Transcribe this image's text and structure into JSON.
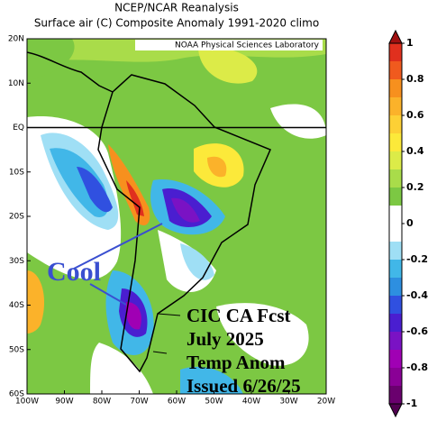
{
  "header": {
    "title": "NCEP/NCAR Reanalysis",
    "subtitle": "Surface air (C) Composite Anomaly 1991-2020 climo"
  },
  "map": {
    "credit": "NOAA Physical Sciences Laboratory",
    "xlim": [
      -100,
      -20
    ],
    "ylim": [
      -60,
      20
    ],
    "xticks": [
      {
        "value": -100,
        "label": "100W"
      },
      {
        "value": -90,
        "label": "90W"
      },
      {
        "value": -80,
        "label": "80W"
      },
      {
        "value": -70,
        "label": "70W"
      },
      {
        "value": -60,
        "label": "60W"
      },
      {
        "value": -50,
        "label": "50W"
      },
      {
        "value": -40,
        "label": "40W"
      },
      {
        "value": -30,
        "label": "30W"
      },
      {
        "value": -20,
        "label": "20W"
      }
    ],
    "yticks": [
      {
        "value": 20,
        "label": "20N"
      },
      {
        "value": 10,
        "label": "10N"
      },
      {
        "value": 0,
        "label": "EQ"
      },
      {
        "value": -10,
        "label": "10S"
      },
      {
        "value": -20,
        "label": "20S"
      },
      {
        "value": -30,
        "label": "30S"
      },
      {
        "value": -40,
        "label": "40S"
      },
      {
        "value": -50,
        "label": "50S"
      },
      {
        "value": -60,
        "label": "60S"
      }
    ],
    "annotation": "Cool",
    "forecast_text": [
      "CIC CA Fcst",
      "July 2025",
      "Temp Anom",
      "Issued 6/26/25"
    ]
  },
  "colorbar": {
    "lim": [
      -1,
      1
    ],
    "ticks": [
      1,
      0.8,
      0.6,
      0.4,
      0.2,
      0,
      -0.2,
      -0.4,
      -0.6,
      -0.8,
      -1
    ],
    "colors": [
      "#e0301e",
      "#f05a1e",
      "#f7901e",
      "#fbb22a",
      "#fdd035",
      "#fce93a",
      "#dceb48",
      "#a9dc4a",
      "#7cc843",
      "#ffffff",
      "#ffffff",
      "#9fdff5",
      "#41b7e8",
      "#2d8fe0",
      "#3050e0",
      "#4a1ed0",
      "#7a12c4",
      "#a000b4",
      "#8a0096",
      "#6a006e"
    ],
    "over_color": "#a01010",
    "under_color": "#500050"
  }
}
